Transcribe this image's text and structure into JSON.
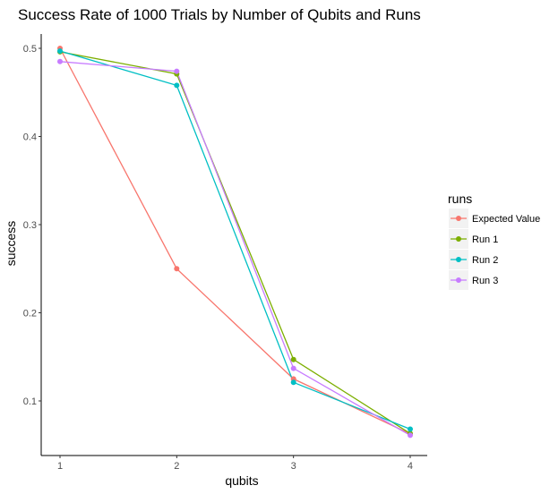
{
  "chart_data": {
    "type": "line",
    "title": "Success Rate of 1000 Trials by Number of Qubits and Runs",
    "xlabel": "qubits",
    "ylabel": "success",
    "x": [
      1,
      2,
      3,
      4
    ],
    "x_ticks": [
      "1",
      "2",
      "3",
      "4"
    ],
    "y_ticks": [
      "0.1",
      "0.2",
      "0.3",
      "0.4",
      "0.5"
    ],
    "ylim": [
      0.04,
      0.505
    ],
    "grid": false,
    "legend": {
      "title": "runs",
      "position": "right"
    },
    "series": [
      {
        "name": "Expected Value",
        "color": "#F8766D",
        "values": [
          0.5,
          0.25,
          0.125,
          0.0625
        ]
      },
      {
        "name": "Run 1",
        "color": "#7CAE00",
        "values": [
          0.496,
          0.471,
          0.147,
          0.063
        ]
      },
      {
        "name": "Run 2",
        "color": "#00BFC4",
        "values": [
          0.497,
          0.458,
          0.121,
          0.068
        ]
      },
      {
        "name": "Run 3",
        "color": "#C77CFF",
        "values": [
          0.485,
          0.474,
          0.137,
          0.061
        ]
      }
    ]
  }
}
